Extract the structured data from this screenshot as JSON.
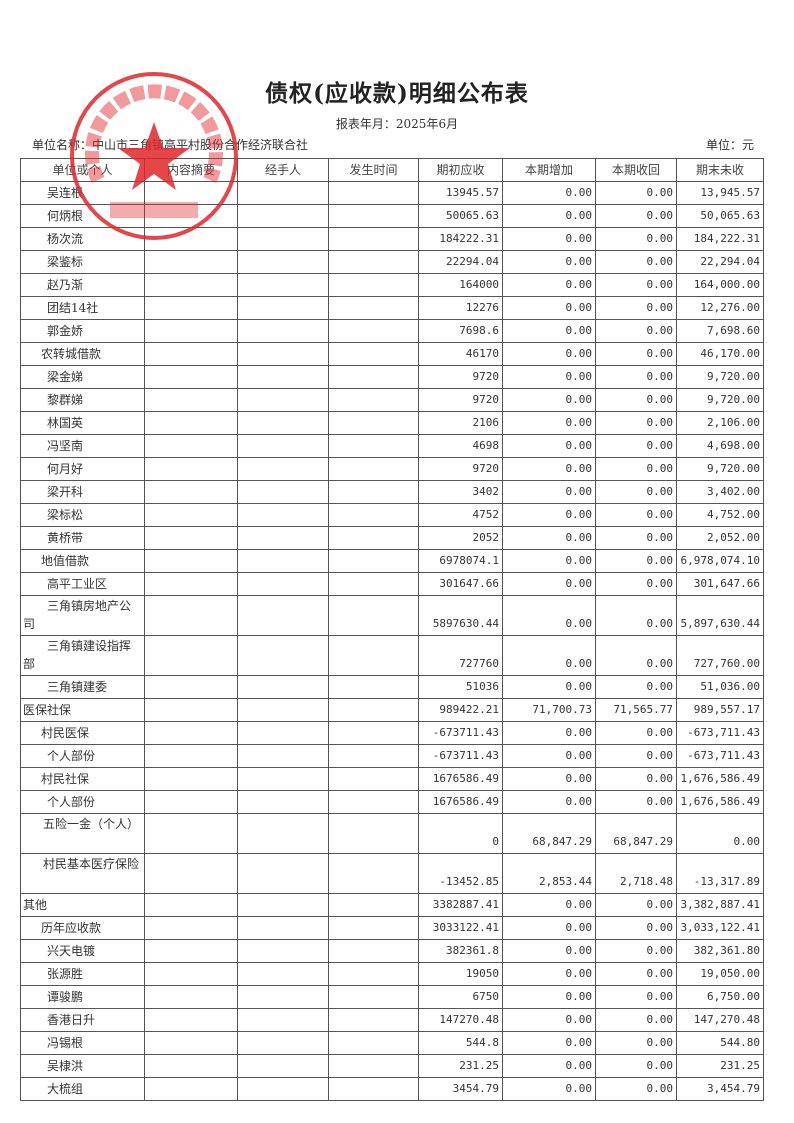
{
  "title": "债权(应收款)明细公布表",
  "report_period": "报表年月：2025年6月",
  "unit_name": "单位名称：中山市三角镇高平村股份合作经济联合社",
  "currency_unit": "单位：元",
  "stamp": {
    "text": "中山市三角镇高平村股份合作经济联合社",
    "color": "#e0262b"
  },
  "columns": [
    "单位或个人",
    "内容摘要",
    "经手人",
    "发生时间",
    "期初应收",
    "本期增加",
    "本期收回",
    "期末未收"
  ],
  "rows": [
    {
      "name": "吴连根",
      "indent": 2,
      "open": "13945.57",
      "inc": "0.00",
      "rec": "0.00",
      "close": "13,945.57"
    },
    {
      "name": "何炳根",
      "indent": 2,
      "open": "50065.63",
      "inc": "0.00",
      "rec": "0.00",
      "close": "50,065.63"
    },
    {
      "name": "杨次流",
      "indent": 2,
      "open": "184222.31",
      "inc": "0.00",
      "rec": "0.00",
      "close": "184,222.31"
    },
    {
      "name": "梁鉴标",
      "indent": 2,
      "open": "22294.04",
      "inc": "0.00",
      "rec": "0.00",
      "close": "22,294.04"
    },
    {
      "name": "赵乃渐",
      "indent": 2,
      "open": "164000",
      "inc": "0.00",
      "rec": "0.00",
      "close": "164,000.00"
    },
    {
      "name": "团结14社",
      "indent": 2,
      "open": "12276",
      "inc": "0.00",
      "rec": "0.00",
      "close": "12,276.00"
    },
    {
      "name": "郭金娇",
      "indent": 2,
      "open": "7698.6",
      "inc": "0.00",
      "rec": "0.00",
      "close": "7,698.60"
    },
    {
      "name": "农转城借款",
      "indent": 1,
      "open": "46170",
      "inc": "0.00",
      "rec": "0.00",
      "close": "46,170.00"
    },
    {
      "name": "梁金娣",
      "indent": 2,
      "open": "9720",
      "inc": "0.00",
      "rec": "0.00",
      "close": "9,720.00"
    },
    {
      "name": "黎群娣",
      "indent": 2,
      "open": "9720",
      "inc": "0.00",
      "rec": "0.00",
      "close": "9,720.00"
    },
    {
      "name": "林国英",
      "indent": 2,
      "open": "2106",
      "inc": "0.00",
      "rec": "0.00",
      "close": "2,106.00"
    },
    {
      "name": "冯坚南",
      "indent": 2,
      "open": "4698",
      "inc": "0.00",
      "rec": "0.00",
      "close": "4,698.00"
    },
    {
      "name": "何月好",
      "indent": 2,
      "open": "9720",
      "inc": "0.00",
      "rec": "0.00",
      "close": "9,720.00"
    },
    {
      "name": "梁开科",
      "indent": 2,
      "open": "3402",
      "inc": "0.00",
      "rec": "0.00",
      "close": "3,402.00"
    },
    {
      "name": "梁标松",
      "indent": 2,
      "open": "4752",
      "inc": "0.00",
      "rec": "0.00",
      "close": "4,752.00"
    },
    {
      "name": "黄桥带",
      "indent": 2,
      "open": "2052",
      "inc": "0.00",
      "rec": "0.00",
      "close": "2,052.00"
    },
    {
      "name": "地值借款",
      "indent": 1,
      "open": "6978074.1",
      "inc": "0.00",
      "rec": "0.00",
      "close": "6,978,074.10"
    },
    {
      "name": "高平工业区",
      "indent": 2,
      "open": "301647.66",
      "inc": "0.00",
      "rec": "0.00",
      "close": "301,647.66"
    },
    {
      "name": "三角镇房地产公司",
      "indent": 2,
      "tall": true,
      "open": "5897630.44",
      "inc": "0.00",
      "rec": "0.00",
      "close": "5,897,630.44"
    },
    {
      "name": "三角镇建设指挥部",
      "indent": 2,
      "tall": true,
      "open": "727760",
      "inc": "0.00",
      "rec": "0.00",
      "close": "727,760.00"
    },
    {
      "name": "三角镇建委",
      "indent": 2,
      "open": "51036",
      "inc": "0.00",
      "rec": "0.00",
      "close": "51,036.00"
    },
    {
      "name": "医保社保",
      "indent": 0,
      "open": "989422.21",
      "inc": "71,700.73",
      "rec": "71,565.77",
      "close": "989,557.17"
    },
    {
      "name": "村民医保",
      "indent": 1,
      "open": "-673711.43",
      "inc": "0.00",
      "rec": "0.00",
      "close": "-673,711.43"
    },
    {
      "name": "个人部份",
      "indent": 2,
      "open": "-673711.43",
      "inc": "0.00",
      "rec": "0.00",
      "close": "-673,711.43"
    },
    {
      "name": "村民社保",
      "indent": 1,
      "open": "1676586.49",
      "inc": "0.00",
      "rec": "0.00",
      "close": "1,676,586.49"
    },
    {
      "name": "个人部份",
      "indent": 2,
      "open": "1676586.49",
      "inc": "0.00",
      "rec": "0.00",
      "close": "1,676,586.49"
    },
    {
      "name": "五险一金（个人）",
      "indent": 1,
      "tall": true,
      "open": "0",
      "inc": "68,847.29",
      "rec": "68,847.29",
      "close": "0.00"
    },
    {
      "name": "村民基本医疗保险",
      "indent": 1,
      "tall": true,
      "open": "-13452.85",
      "inc": "2,853.44",
      "rec": "2,718.48",
      "close": "-13,317.89"
    },
    {
      "name": "其他",
      "indent": 0,
      "open": "3382887.41",
      "inc": "0.00",
      "rec": "0.00",
      "close": "3,382,887.41"
    },
    {
      "name": "历年应收款",
      "indent": 1,
      "open": "3033122.41",
      "inc": "0.00",
      "rec": "0.00",
      "close": "3,033,122.41"
    },
    {
      "name": "兴天电镀",
      "indent": 2,
      "open": "382361.8",
      "inc": "0.00",
      "rec": "0.00",
      "close": "382,361.80"
    },
    {
      "name": "张源胜",
      "indent": 2,
      "open": "19050",
      "inc": "0.00",
      "rec": "0.00",
      "close": "19,050.00"
    },
    {
      "name": "谭骏鹏",
      "indent": 2,
      "open": "6750",
      "inc": "0.00",
      "rec": "0.00",
      "close": "6,750.00"
    },
    {
      "name": "香港日升",
      "indent": 2,
      "open": "147270.48",
      "inc": "0.00",
      "rec": "0.00",
      "close": "147,270.48"
    },
    {
      "name": "冯锡根",
      "indent": 2,
      "open": "544.8",
      "inc": "0.00",
      "rec": "0.00",
      "close": "544.80"
    },
    {
      "name": "吴棣洪",
      "indent": 2,
      "open": "231.25",
      "inc": "0.00",
      "rec": "0.00",
      "close": "231.25"
    },
    {
      "name": "大梳组",
      "indent": 2,
      "open": "3454.79",
      "inc": "0.00",
      "rec": "0.00",
      "close": "3,454.79"
    }
  ]
}
